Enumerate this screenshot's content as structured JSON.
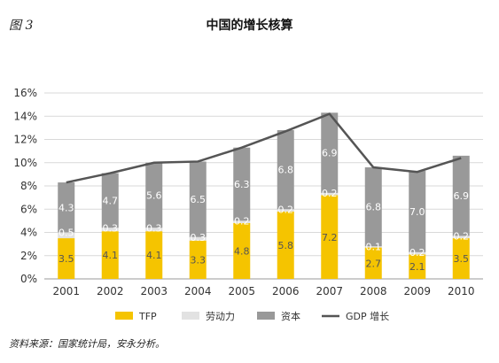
{
  "figure_label": "图 3",
  "source_note": "资料来源：国家统计局，安永分析。",
  "chart_data": {
    "type": "bar",
    "title": "中国的增长核算",
    "categories": [
      "2001",
      "2002",
      "2003",
      "2004",
      "2005",
      "2006",
      "2007",
      "2008",
      "2009",
      "2010"
    ],
    "series": [
      {
        "name": "TFP",
        "kind": "stacked-bar",
        "color": "#f5c400",
        "label_color": "#555555",
        "values": [
          3.5,
          4.1,
          4.1,
          3.3,
          4.8,
          5.8,
          7.2,
          2.7,
          2.1,
          3.5
        ]
      },
      {
        "name": "劳动力",
        "kind": "stacked-bar",
        "color": "#e2e2e2",
        "label_color": "#ffffff",
        "values": [
          0.5,
          0.3,
          0.3,
          0.3,
          0.2,
          0.2,
          0.2,
          0.1,
          0.2,
          0.2
        ]
      },
      {
        "name": "资本",
        "kind": "stacked-bar",
        "color": "#999999",
        "label_color": "#ffffff",
        "values": [
          4.3,
          4.7,
          5.6,
          6.5,
          6.3,
          6.8,
          6.9,
          6.8,
          7.0,
          6.9
        ]
      },
      {
        "name": "GDP 增长",
        "kind": "line",
        "color": "#555555",
        "values": [
          8.3,
          9.1,
          10.0,
          10.1,
          11.3,
          12.7,
          14.2,
          9.6,
          9.2,
          10.4
        ]
      }
    ],
    "y_ticks": [
      "0%",
      "2%",
      "4%",
      "6%",
      "8%",
      "10%",
      "12%",
      "14%",
      "16%"
    ],
    "ylim": [
      0,
      16
    ],
    "grid": true,
    "legend_position": "bottom"
  }
}
